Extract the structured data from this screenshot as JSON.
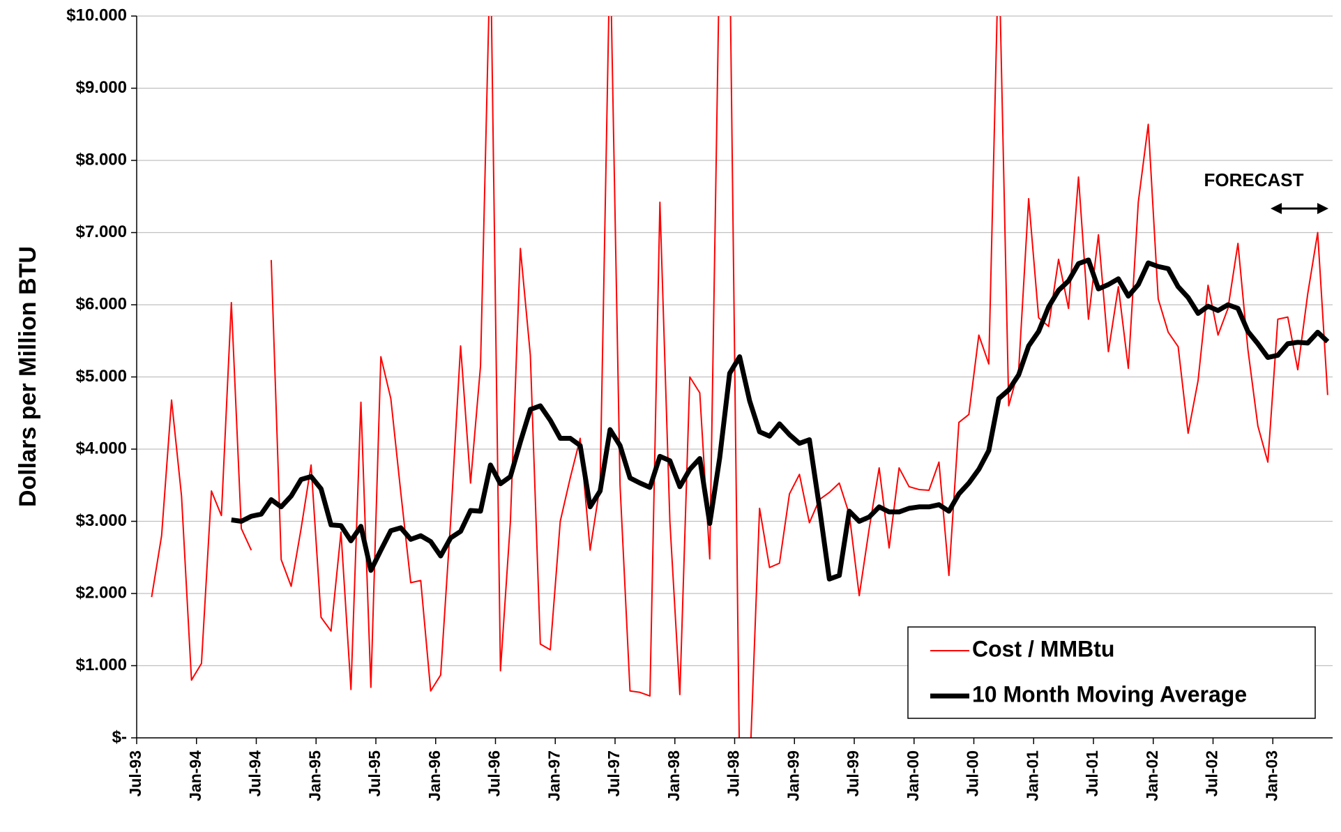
{
  "chart_data": {
    "type": "line",
    "y_label": "Dollars per Million BTU",
    "annotation": "FORECAST",
    "categories": [
      "Jul-93",
      null,
      null,
      null,
      null,
      null,
      "Jan-94",
      null,
      null,
      null,
      null,
      null,
      "Jul-94",
      null,
      null,
      null,
      null,
      null,
      "Jan-95",
      null,
      null,
      null,
      null,
      null,
      "Jul-95",
      null,
      null,
      null,
      null,
      null,
      "Jan-96",
      null,
      null,
      null,
      null,
      null,
      "Jul-96",
      null,
      null,
      null,
      null,
      null,
      "Jan-97",
      null,
      null,
      null,
      null,
      null,
      "Jul-97",
      null,
      null,
      null,
      null,
      null,
      "Jan-98",
      null,
      null,
      null,
      null,
      null,
      "Jul-98",
      null,
      null,
      null,
      null,
      null,
      "Jan-99",
      null,
      null,
      null,
      null,
      null,
      "Jul-99",
      null,
      null,
      null,
      null,
      null,
      "Jan-00",
      null,
      null,
      null,
      null,
      null,
      "Jul-00",
      null,
      null,
      null,
      null,
      null,
      "Jan-01",
      null,
      null,
      null,
      null,
      null,
      "Jul-01",
      null,
      null,
      null,
      null,
      null,
      "Jan-02",
      null,
      null,
      null,
      null,
      null,
      "Jul-02",
      null,
      null,
      null,
      null,
      null,
      "Jan-03",
      null,
      null,
      null,
      null,
      null
    ],
    "series": [
      {
        "name": "Cost / MMBtu",
        "color": "#ff0000",
        "width": 2,
        "values": [
          null,
          1.95,
          2.8,
          4.68,
          3.35,
          0.8,
          1.03,
          3.42,
          3.08,
          6.03,
          2.9,
          2.6,
          null,
          6.62,
          2.47,
          2.1,
          2.9,
          3.78,
          1.67,
          1.48,
          2.85,
          0.67,
          4.65,
          0.7,
          5.28,
          4.7,
          3.4,
          2.15,
          2.18,
          0.65,
          0.87,
          3.0,
          5.43,
          3.53,
          5.15,
          11,
          0.93,
          3.0,
          6.78,
          5.3,
          1.3,
          1.22,
          3.0,
          3.6,
          4.15,
          2.6,
          3.5,
          11,
          3.5,
          0.65,
          0.63,
          0.58,
          7.42,
          3.0,
          0.6,
          5.0,
          4.78,
          2.48,
          11,
          11,
          -0.5,
          -0.5,
          3.18,
          2.36,
          2.42,
          3.38,
          3.65,
          2.98,
          3.3,
          3.4,
          3.53,
          3.1,
          1.97,
          2.9,
          3.74,
          2.63,
          3.74,
          3.48,
          3.44,
          3.43,
          3.82,
          2.25,
          4.37,
          4.48,
          5.58,
          5.18,
          11,
          4.6,
          5.1,
          7.47,
          5.82,
          5.7,
          6.63,
          5.95,
          7.77,
          5.8,
          6.97,
          5.35,
          6.25,
          5.12,
          7.42,
          8.5,
          6.08,
          5.62,
          5.42,
          4.22,
          4.95,
          6.27,
          5.58,
          5.95,
          6.85,
          5.38,
          4.32,
          3.82,
          5.8,
          5.83,
          5.1,
          6.15,
          7.0,
          4.75
        ]
      },
      {
        "name": "10 Month Moving Average",
        "color": "#000000",
        "width": 7,
        "values": [
          null,
          null,
          null,
          null,
          null,
          null,
          null,
          null,
          null,
          3.02,
          3.0,
          3.07,
          3.1,
          3.3,
          3.2,
          3.35,
          3.58,
          3.62,
          3.45,
          2.95,
          2.94,
          2.73,
          2.93,
          2.32,
          2.6,
          2.87,
          2.91,
          2.75,
          2.8,
          2.72,
          2.52,
          2.77,
          2.86,
          3.15,
          3.14,
          3.78,
          3.52,
          3.62,
          4.1,
          4.55,
          4.6,
          4.4,
          4.15,
          4.15,
          4.05,
          3.2,
          3.42,
          4.27,
          4.05,
          3.6,
          3.53,
          3.47,
          3.9,
          3.84,
          3.48,
          3.72,
          3.87,
          2.97,
          3.88,
          5.05,
          5.28,
          4.67,
          4.24,
          4.18,
          4.35,
          4.2,
          4.08,
          4.13,
          3.2,
          2.2,
          2.25,
          3.14,
          3.0,
          3.06,
          3.2,
          3.13,
          3.13,
          3.18,
          3.2,
          3.2,
          3.23,
          3.14,
          3.38,
          3.53,
          3.72,
          3.98,
          4.7,
          4.82,
          5.03,
          5.43,
          5.63,
          5.97,
          6.2,
          6.33,
          6.57,
          6.62,
          6.22,
          6.28,
          6.36,
          6.12,
          6.28,
          6.58,
          6.53,
          6.5,
          6.25,
          6.1,
          5.88,
          5.98,
          5.92,
          6.0,
          5.95,
          5.63,
          5.46,
          5.27,
          5.3,
          5.46,
          5.48,
          5.47,
          5.62,
          5.49
        ]
      }
    ],
    "ylim": [
      0,
      10
    ],
    "yticks": [
      {
        "value": 0,
        "label": "$-"
      },
      {
        "value": 1,
        "label": "$1.000"
      },
      {
        "value": 2,
        "label": "$2.000"
      },
      {
        "value": 3,
        "label": "$3.000"
      },
      {
        "value": 4,
        "label": "$4.000"
      },
      {
        "value": 5,
        "label": "$5.000"
      },
      {
        "value": 6,
        "label": "$6.000"
      },
      {
        "value": 7,
        "label": "$7.000"
      },
      {
        "value": 8,
        "label": "$8.000"
      },
      {
        "value": 9,
        "label": "$9.000"
      },
      {
        "value": 10,
        "label": "$10.000"
      }
    ],
    "grid": true,
    "legend": "lower right"
  }
}
